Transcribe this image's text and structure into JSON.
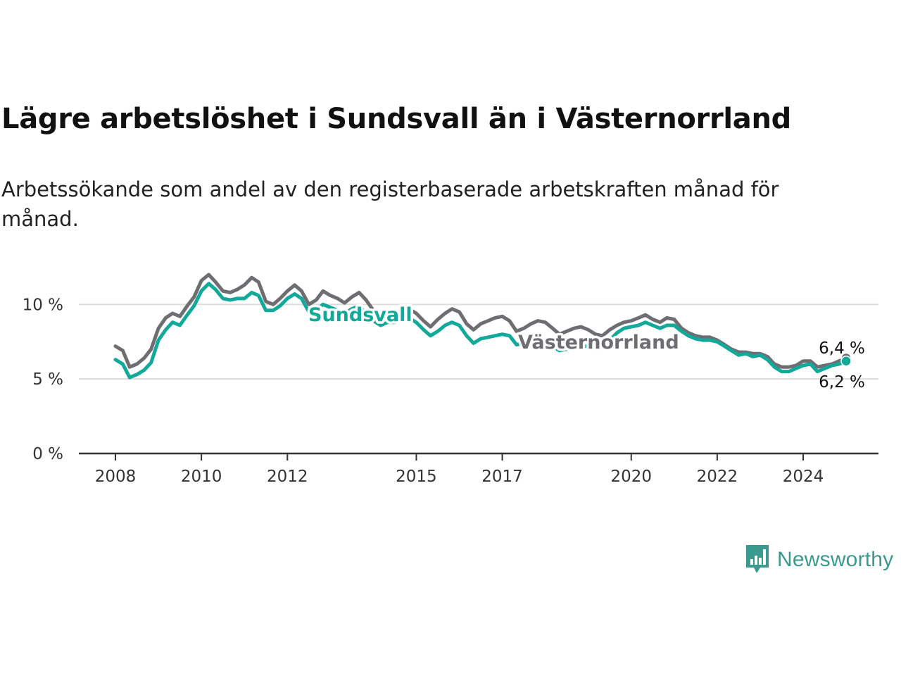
{
  "title": "Lägre arbetslöshet i Sundsvall än i Västernorrland",
  "subtitle": "Arbetssökande som andel av den registerbaserade arbetskraften månad för månad.",
  "brand": "Newsworthy",
  "colors": {
    "sundsvall": "#12a89a",
    "vasternorrland": "#6e6e72",
    "brand": "#3a9a8e"
  },
  "chart_data": {
    "type": "line",
    "ylim": [
      0,
      12
    ],
    "xlim": [
      2008,
      2026.1
    ],
    "y_ticks": [
      {
        "value": 0,
        "label": "0 %"
      },
      {
        "value": 5,
        "label": "5 %"
      },
      {
        "value": 10,
        "label": "10 %"
      }
    ],
    "x_ticks": [
      {
        "value": 2008,
        "label": "2008"
      },
      {
        "value": 2010,
        "label": "2010"
      },
      {
        "value": 2012,
        "label": "2012"
      },
      {
        "value": 2015,
        "label": "2015"
      },
      {
        "value": 2017,
        "label": "2017"
      },
      {
        "value": 2020,
        "label": "2020"
      },
      {
        "value": 2022,
        "label": "2022"
      },
      {
        "value": 2024,
        "label": "2024"
      }
    ],
    "grid": true,
    "series": [
      {
        "name": "Västernorrland",
        "key": "vasternorrland",
        "end_label": "6,4 %",
        "points": [
          [
            2008.0,
            7.2
          ],
          [
            2008.17,
            6.9
          ],
          [
            2008.33,
            5.8
          ],
          [
            2008.5,
            6.0
          ],
          [
            2008.67,
            6.4
          ],
          [
            2008.83,
            7.0
          ],
          [
            2009.0,
            8.4
          ],
          [
            2009.17,
            9.1
          ],
          [
            2009.33,
            9.4
          ],
          [
            2009.5,
            9.2
          ],
          [
            2009.67,
            9.9
          ],
          [
            2009.83,
            10.5
          ],
          [
            2010.0,
            11.6
          ],
          [
            2010.17,
            12.0
          ],
          [
            2010.33,
            11.5
          ],
          [
            2010.5,
            10.9
          ],
          [
            2010.67,
            10.8
          ],
          [
            2010.83,
            11.0
          ],
          [
            2011.0,
            11.3
          ],
          [
            2011.17,
            11.8
          ],
          [
            2011.33,
            11.5
          ],
          [
            2011.5,
            10.2
          ],
          [
            2011.67,
            10.0
          ],
          [
            2011.83,
            10.4
          ],
          [
            2012.0,
            10.9
          ],
          [
            2012.17,
            11.3
          ],
          [
            2012.33,
            10.9
          ],
          [
            2012.5,
            10.0
          ],
          [
            2012.67,
            10.3
          ],
          [
            2012.83,
            10.9
          ],
          [
            2013.0,
            10.6
          ],
          [
            2013.17,
            10.4
          ],
          [
            2013.33,
            10.1
          ],
          [
            2013.5,
            10.5
          ],
          [
            2013.67,
            10.8
          ],
          [
            2013.83,
            10.3
          ],
          [
            2014.0,
            9.6
          ],
          [
            2014.17,
            9.0
          ],
          [
            2014.33,
            9.3
          ],
          [
            2014.5,
            9.4
          ],
          [
            2014.67,
            9.5
          ],
          [
            2014.83,
            9.7
          ],
          [
            2015.0,
            9.4
          ],
          [
            2015.17,
            8.9
          ],
          [
            2015.33,
            8.5
          ],
          [
            2015.5,
            9.0
          ],
          [
            2015.67,
            9.4
          ],
          [
            2015.83,
            9.7
          ],
          [
            2016.0,
            9.5
          ],
          [
            2016.17,
            8.7
          ],
          [
            2016.33,
            8.3
          ],
          [
            2016.5,
            8.7
          ],
          [
            2016.67,
            8.9
          ],
          [
            2016.83,
            9.1
          ],
          [
            2017.0,
            9.2
          ],
          [
            2017.17,
            8.9
          ],
          [
            2017.33,
            8.2
          ],
          [
            2017.5,
            8.4
          ],
          [
            2017.67,
            8.7
          ],
          [
            2017.83,
            8.9
          ],
          [
            2018.0,
            8.8
          ],
          [
            2018.17,
            8.4
          ],
          [
            2018.33,
            8.0
          ],
          [
            2018.5,
            8.2
          ],
          [
            2018.67,
            8.4
          ],
          [
            2018.83,
            8.5
          ],
          [
            2019.0,
            8.3
          ],
          [
            2019.17,
            8.0
          ],
          [
            2019.33,
            7.9
          ],
          [
            2019.5,
            8.3
          ],
          [
            2019.67,
            8.6
          ],
          [
            2019.83,
            8.8
          ],
          [
            2020.0,
            8.9
          ],
          [
            2020.17,
            9.1
          ],
          [
            2020.33,
            9.3
          ],
          [
            2020.5,
            9.0
          ],
          [
            2020.67,
            8.8
          ],
          [
            2020.83,
            9.1
          ],
          [
            2021.0,
            9.0
          ],
          [
            2021.17,
            8.4
          ],
          [
            2021.33,
            8.1
          ],
          [
            2021.5,
            7.9
          ],
          [
            2021.67,
            7.8
          ],
          [
            2021.83,
            7.8
          ],
          [
            2022.0,
            7.6
          ],
          [
            2022.17,
            7.3
          ],
          [
            2022.33,
            7.0
          ],
          [
            2022.5,
            6.8
          ],
          [
            2022.67,
            6.8
          ],
          [
            2022.83,
            6.7
          ],
          [
            2023.0,
            6.7
          ],
          [
            2023.17,
            6.5
          ],
          [
            2023.33,
            6.0
          ],
          [
            2023.5,
            5.8
          ],
          [
            2023.67,
            5.8
          ],
          [
            2023.83,
            5.9
          ],
          [
            2024.0,
            6.2
          ],
          [
            2024.17,
            6.2
          ],
          [
            2024.33,
            5.8
          ],
          [
            2024.5,
            5.9
          ],
          [
            2024.67,
            6.0
          ],
          [
            2024.83,
            6.2
          ],
          [
            2025.0,
            6.4
          ]
        ]
      },
      {
        "name": "Sundsvall",
        "key": "sundsvall",
        "end_label": "6,2 %",
        "points": [
          [
            2008.0,
            6.3
          ],
          [
            2008.17,
            6.0
          ],
          [
            2008.33,
            5.1
          ],
          [
            2008.5,
            5.3
          ],
          [
            2008.67,
            5.6
          ],
          [
            2008.83,
            6.1
          ],
          [
            2009.0,
            7.6
          ],
          [
            2009.17,
            8.3
          ],
          [
            2009.33,
            8.8
          ],
          [
            2009.5,
            8.6
          ],
          [
            2009.67,
            9.3
          ],
          [
            2009.83,
            9.9
          ],
          [
            2010.0,
            10.9
          ],
          [
            2010.17,
            11.4
          ],
          [
            2010.33,
            11.0
          ],
          [
            2010.5,
            10.4
          ],
          [
            2010.67,
            10.3
          ],
          [
            2010.83,
            10.4
          ],
          [
            2011.0,
            10.4
          ],
          [
            2011.17,
            10.8
          ],
          [
            2011.33,
            10.6
          ],
          [
            2011.5,
            9.6
          ],
          [
            2011.67,
            9.6
          ],
          [
            2011.83,
            9.9
          ],
          [
            2012.0,
            10.4
          ],
          [
            2012.17,
            10.7
          ],
          [
            2012.33,
            10.4
          ],
          [
            2012.5,
            9.5
          ],
          [
            2012.67,
            9.6
          ],
          [
            2012.83,
            10.0
          ],
          [
            2013.0,
            9.8
          ],
          [
            2013.17,
            9.6
          ],
          [
            2013.33,
            9.4
          ],
          [
            2013.5,
            9.7
          ],
          [
            2013.67,
            9.9
          ],
          [
            2013.83,
            9.4
          ],
          [
            2014.0,
            8.9
          ],
          [
            2014.17,
            8.6
          ],
          [
            2014.33,
            8.8
          ],
          [
            2014.5,
            8.8
          ],
          [
            2014.67,
            8.9
          ],
          [
            2014.83,
            9.1
          ],
          [
            2015.0,
            8.8
          ],
          [
            2015.17,
            8.3
          ],
          [
            2015.33,
            7.9
          ],
          [
            2015.5,
            8.2
          ],
          [
            2015.67,
            8.6
          ],
          [
            2015.83,
            8.8
          ],
          [
            2016.0,
            8.6
          ],
          [
            2016.17,
            7.9
          ],
          [
            2016.33,
            7.4
          ],
          [
            2016.5,
            7.7
          ],
          [
            2016.67,
            7.8
          ],
          [
            2016.83,
            7.9
          ],
          [
            2017.0,
            8.0
          ],
          [
            2017.17,
            7.9
          ],
          [
            2017.33,
            7.3
          ],
          [
            2017.5,
            7.4
          ],
          [
            2017.67,
            7.6
          ],
          [
            2017.83,
            7.6
          ],
          [
            2018.0,
            7.5
          ],
          [
            2018.17,
            7.2
          ],
          [
            2018.33,
            6.9
          ],
          [
            2018.5,
            7.0
          ],
          [
            2018.67,
            7.1
          ],
          [
            2018.83,
            7.2
          ],
          [
            2019.0,
            7.2
          ],
          [
            2019.17,
            7.0
          ],
          [
            2019.33,
            7.1
          ],
          [
            2019.5,
            7.6
          ],
          [
            2019.67,
            8.1
          ],
          [
            2019.83,
            8.4
          ],
          [
            2020.0,
            8.5
          ],
          [
            2020.17,
            8.6
          ],
          [
            2020.33,
            8.8
          ],
          [
            2020.5,
            8.6
          ],
          [
            2020.67,
            8.4
          ],
          [
            2020.83,
            8.6
          ],
          [
            2021.0,
            8.6
          ],
          [
            2021.17,
            8.2
          ],
          [
            2021.33,
            7.9
          ],
          [
            2021.5,
            7.7
          ],
          [
            2021.67,
            7.6
          ],
          [
            2021.83,
            7.6
          ],
          [
            2022.0,
            7.5
          ],
          [
            2022.17,
            7.2
          ],
          [
            2022.33,
            6.9
          ],
          [
            2022.5,
            6.6
          ],
          [
            2022.67,
            6.7
          ],
          [
            2022.83,
            6.5
          ],
          [
            2023.0,
            6.6
          ],
          [
            2023.17,
            6.3
          ],
          [
            2023.33,
            5.8
          ],
          [
            2023.5,
            5.5
          ],
          [
            2023.67,
            5.5
          ],
          [
            2023.83,
            5.7
          ],
          [
            2024.0,
            5.9
          ],
          [
            2024.17,
            6.0
          ],
          [
            2024.33,
            5.5
          ],
          [
            2024.5,
            5.7
          ],
          [
            2024.67,
            5.9
          ],
          [
            2024.83,
            6.0
          ],
          [
            2025.0,
            6.2
          ]
        ]
      }
    ]
  }
}
